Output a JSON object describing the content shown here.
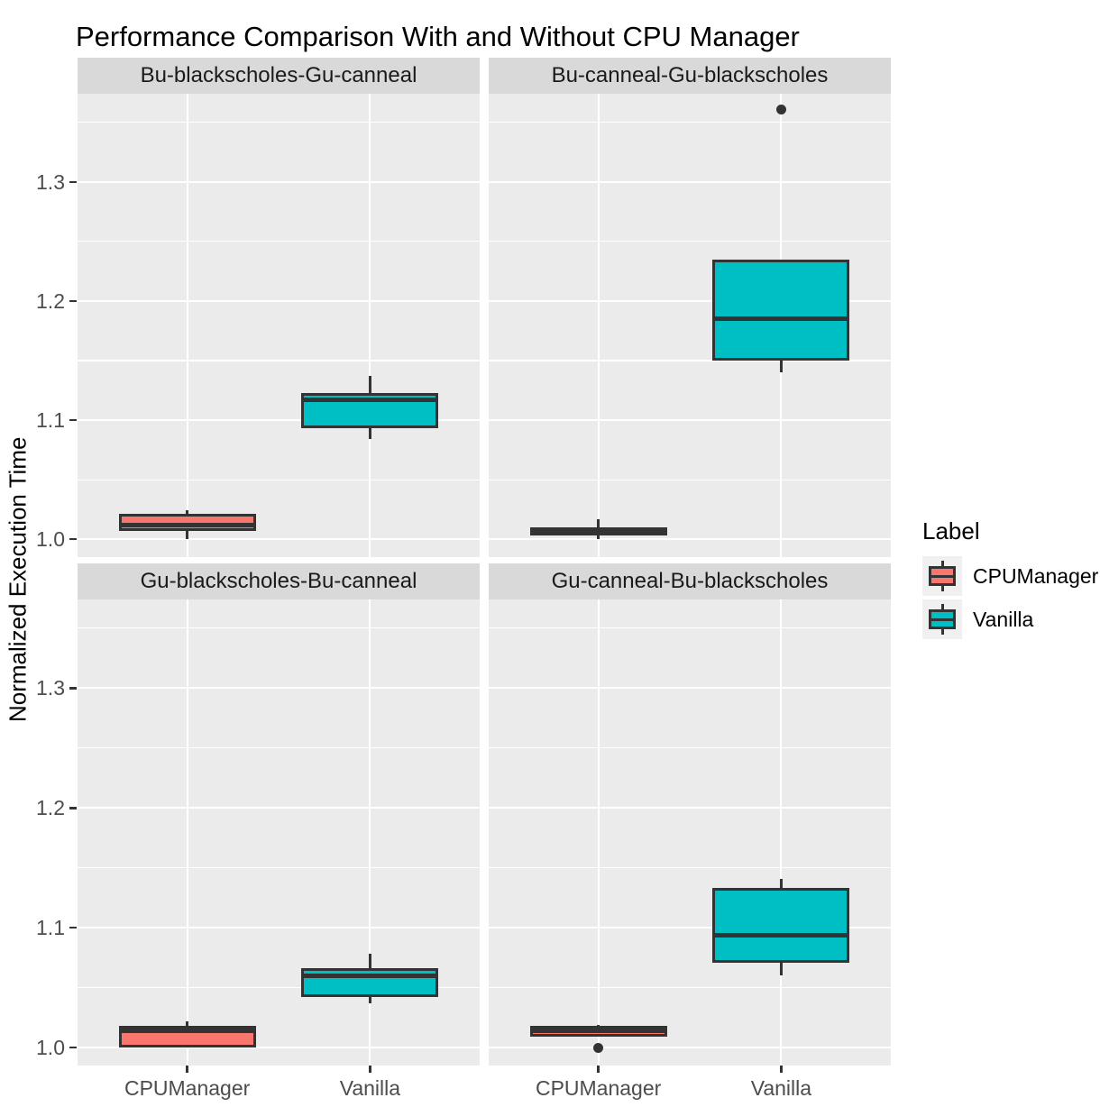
{
  "title": "Performance Comparison With and Without CPU Manager",
  "y_axis": {
    "title": "Normalized Execution Time",
    "ticks": [
      "1.0",
      "1.1",
      "1.2",
      "1.3"
    ]
  },
  "x_axis": {
    "categories": [
      "CPUManager",
      "Vanilla"
    ]
  },
  "legend": {
    "title": "Label",
    "items": [
      {
        "label": "CPUManager",
        "color": "#F8766D"
      },
      {
        "label": "Vanilla",
        "color": "#00BFC4"
      }
    ]
  },
  "colors": {
    "cpumanager_fill": "#F8766D",
    "vanilla_fill": "#00BFC4",
    "box_border": "#333333",
    "panel_bg": "#EBEBEB",
    "strip_bg": "#D9D9D9",
    "gridline": "#FFFFFF",
    "axis_text": "#4D4D4D",
    "title_text": "#000000",
    "legend_key_bg": "#F0F0F0"
  },
  "chart_data": {
    "type": "boxplot",
    "title": "Performance Comparison With and Without CPU Manager",
    "xlabel": "",
    "ylabel": "Normalized Execution Time",
    "ylim": [
      0.985,
      1.374
    ],
    "y_major_ticks": [
      1.0,
      1.1,
      1.2,
      1.3
    ],
    "y_minor_ticks": [
      1.05,
      1.15,
      1.25,
      1.35
    ],
    "grid": true,
    "legend_position": "right",
    "categories": [
      "CPUManager",
      "Vanilla"
    ],
    "facets": [
      {
        "label": "Bu-blackscholes-Gu-canneal",
        "boxes": [
          {
            "group": "CPUManager",
            "min": 1.0,
            "q1": 1.007,
            "median": 1.012,
            "q3": 1.021,
            "max": 1.024,
            "outliers": []
          },
          {
            "group": "Vanilla",
            "min": 1.084,
            "q1": 1.093,
            "median": 1.117,
            "q3": 1.123,
            "max": 1.137,
            "outliers": []
          }
        ]
      },
      {
        "label": "Bu-canneal-Gu-blackscholes",
        "boxes": [
          {
            "group": "CPUManager",
            "min": 1.0,
            "q1": 1.003,
            "median": 1.006,
            "q3": 1.01,
            "max": 1.017,
            "outliers": []
          },
          {
            "group": "Vanilla",
            "min": 1.14,
            "q1": 1.15,
            "median": 1.185,
            "q3": 1.235,
            "max": 1.235,
            "outliers": [
              1.361
            ]
          }
        ]
      },
      {
        "label": "Gu-blackscholes-Bu-canneal",
        "boxes": [
          {
            "group": "CPUManager",
            "min": 1.0,
            "q1": 1.0,
            "median": 1.014,
            "q3": 1.018,
            "max": 1.022,
            "outliers": []
          },
          {
            "group": "Vanilla",
            "min": 1.037,
            "q1": 1.042,
            "median": 1.06,
            "q3": 1.066,
            "max": 1.078,
            "outliers": []
          }
        ]
      },
      {
        "label": "Gu-canneal-Bu-blackscholes",
        "boxes": [
          {
            "group": "CPUManager",
            "min": 1.009,
            "q1": 1.009,
            "median": 1.014,
            "q3": 1.018,
            "max": 1.019,
            "outliers": [
              1.0
            ]
          },
          {
            "group": "Vanilla",
            "min": 1.06,
            "q1": 1.071,
            "median": 1.094,
            "q3": 1.133,
            "max": 1.141,
            "outliers": []
          }
        ]
      }
    ]
  }
}
